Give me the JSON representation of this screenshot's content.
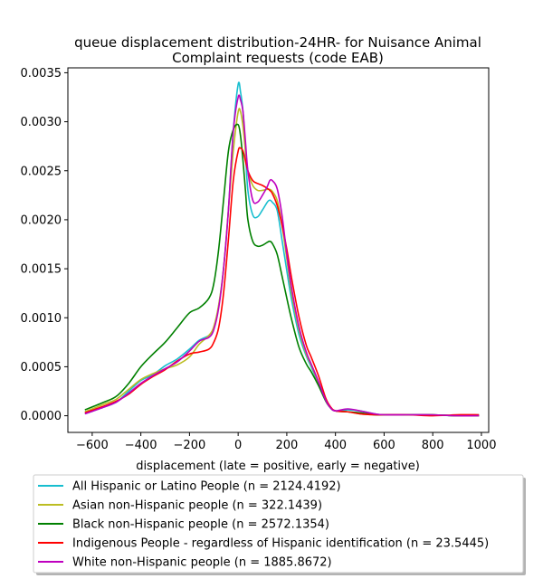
{
  "chart_data": {
    "type": "line",
    "title": "queue displacement distribution-24HR-  for Nuisance Animal Complaint  requests (code EAB)",
    "title_lines": [
      "queue displacement distribution-24HR-  for Nuisance Animal",
      "Complaint  requests (code EAB)"
    ],
    "xlabel": "displacement (late = positive, early = negative)",
    "ylabel": "",
    "xlim": [
      -700,
      1030
    ],
    "ylim": [
      -0.00017,
      0.00355
    ],
    "xticks": [
      -600,
      -400,
      -200,
      0,
      200,
      400,
      600,
      800,
      1000
    ],
    "xtick_labels": [
      "−600",
      "−400",
      "−200",
      "0",
      "200",
      "400",
      "600",
      "800",
      "1000"
    ],
    "yticks": [
      0.0,
      0.0005,
      0.001,
      0.0015,
      0.002,
      0.0025,
      0.003,
      0.0035
    ],
    "ytick_labels": [
      "0.0000",
      "0.0005",
      "0.0010",
      "0.0015",
      "0.0020",
      "0.0025",
      "0.0030",
      "0.0035"
    ],
    "grid": false,
    "legend_position": "below plot",
    "series": [
      {
        "name": "All Hispanic or Latino People (n = 2124.4192)",
        "color": "#17becf",
        "x": [
          -630,
          -550,
          -500,
          -450,
          -400,
          -350,
          -300,
          -250,
          -200,
          -160,
          -120,
          -100,
          -80,
          -60,
          -40,
          -20,
          0,
          10,
          20,
          30,
          40,
          60,
          80,
          100,
          120,
          130,
          140,
          160,
          180,
          200,
          220,
          250,
          280,
          300,
          330,
          360,
          380,
          400,
          450,
          500,
          560,
          600,
          700,
          800,
          900,
          990
        ],
        "y": [
          2e-05,
          9e-05,
          0.00014,
          0.00025,
          0.00036,
          0.00042,
          0.00051,
          0.00058,
          0.00068,
          0.00077,
          0.00082,
          0.0009,
          0.00112,
          0.0015,
          0.0021,
          0.0029,
          0.00338,
          0.0033,
          0.0031,
          0.0027,
          0.0023,
          0.00205,
          0.00203,
          0.0021,
          0.00218,
          0.0022,
          0.00218,
          0.0021,
          0.0018,
          0.00148,
          0.00118,
          0.00083,
          0.00061,
          0.0005,
          0.00033,
          0.00016,
          8e-05,
          5e-05,
          6e-05,
          5e-05,
          2e-05,
          1e-05,
          1e-05,
          1e-05,
          0.0,
          1e-05
        ]
      },
      {
        "name": "Asian non-Hispanic people (n = 322.1439)",
        "color": "#bcbd22",
        "x": [
          -630,
          -550,
          -500,
          -450,
          -400,
          -350,
          -300,
          -250,
          -200,
          -160,
          -120,
          -100,
          -80,
          -60,
          -40,
          -20,
          0,
          10,
          20,
          30,
          40,
          60,
          80,
          100,
          120,
          130,
          140,
          160,
          180,
          200,
          220,
          250,
          280,
          300,
          330,
          360,
          380,
          400,
          450,
          500,
          560,
          600,
          700,
          800,
          900,
          990
        ],
        "y": [
          4e-05,
          0.00012,
          0.00017,
          0.00027,
          0.00037,
          0.00043,
          0.00048,
          0.00052,
          0.0006,
          0.00073,
          0.00082,
          0.00091,
          0.00113,
          0.0015,
          0.0021,
          0.0027,
          0.0031,
          0.0031,
          0.00295,
          0.0027,
          0.0025,
          0.00235,
          0.0023,
          0.0023,
          0.00231,
          0.00231,
          0.00229,
          0.0022,
          0.00195,
          0.0016,
          0.00125,
          0.00088,
          0.00063,
          0.00052,
          0.00034,
          0.00016,
          8e-05,
          5e-05,
          4e-05,
          2e-05,
          1e-05,
          1e-05,
          1e-05,
          1e-05,
          0.0,
          0.0
        ]
      },
      {
        "name": "Black non-Hispanic people (n = 2572.1354)",
        "color": "#008000",
        "x": [
          -630,
          -550,
          -500,
          -450,
          -400,
          -350,
          -300,
          -250,
          -200,
          -160,
          -120,
          -100,
          -80,
          -60,
          -40,
          -20,
          0,
          10,
          20,
          30,
          40,
          60,
          80,
          100,
          120,
          130,
          140,
          160,
          180,
          200,
          220,
          250,
          280,
          300,
          330,
          360,
          380,
          400,
          450,
          500,
          560,
          600,
          700,
          800,
          900,
          990
        ],
        "y": [
          6e-05,
          0.00014,
          0.0002,
          0.00033,
          0.0005,
          0.00063,
          0.00075,
          0.0009,
          0.00105,
          0.0011,
          0.0012,
          0.00135,
          0.0017,
          0.0022,
          0.0027,
          0.00292,
          0.00297,
          0.00285,
          0.0026,
          0.0023,
          0.002,
          0.00178,
          0.00173,
          0.00174,
          0.00177,
          0.00178,
          0.00176,
          0.00165,
          0.00143,
          0.0012,
          0.00098,
          0.0007,
          0.00053,
          0.00045,
          0.00031,
          0.00015,
          8e-05,
          5e-05,
          4e-05,
          3e-05,
          1e-05,
          1e-05,
          1e-05,
          1e-05,
          0.0,
          0.0
        ]
      },
      {
        "name": "Indigenous People - regardless of Hispanic identification (n = 23.5445)",
        "color": "#ff0000",
        "x": [
          -630,
          -550,
          -500,
          -450,
          -400,
          -350,
          -300,
          -250,
          -200,
          -160,
          -120,
          -100,
          -80,
          -60,
          -40,
          -20,
          0,
          10,
          20,
          30,
          40,
          60,
          80,
          100,
          120,
          130,
          140,
          160,
          180,
          200,
          220,
          250,
          280,
          300,
          330,
          360,
          380,
          400,
          450,
          500,
          560,
          600,
          700,
          800,
          900,
          990
        ],
        "y": [
          3e-05,
          0.0001,
          0.00015,
          0.00022,
          0.00032,
          0.0004,
          0.00047,
          0.00056,
          0.00063,
          0.00065,
          0.00068,
          0.00075,
          0.0009,
          0.00125,
          0.0018,
          0.0024,
          0.0027,
          0.00273,
          0.0027,
          0.0026,
          0.0025,
          0.0024,
          0.00237,
          0.00235,
          0.00232,
          0.0023,
          0.00227,
          0.00215,
          0.00195,
          0.0017,
          0.0014,
          0.00101,
          0.00072,
          0.0006,
          0.00041,
          0.00018,
          9e-05,
          5e-05,
          4e-05,
          2e-05,
          1e-05,
          1e-05,
          1e-05,
          0.0,
          1e-05,
          1e-05
        ]
      },
      {
        "name": "White non-Hispanic people (n = 1885.8672)",
        "color": "#bf00bf",
        "x": [
          -630,
          -550,
          -500,
          -450,
          -400,
          -350,
          -300,
          -250,
          -200,
          -160,
          -120,
          -100,
          -80,
          -60,
          -40,
          -20,
          0,
          10,
          20,
          30,
          40,
          60,
          80,
          100,
          120,
          130,
          140,
          160,
          180,
          200,
          220,
          250,
          280,
          300,
          330,
          360,
          380,
          400,
          450,
          500,
          560,
          600,
          700,
          800,
          900,
          990
        ],
        "y": [
          2e-05,
          9e-05,
          0.00014,
          0.00023,
          0.00033,
          0.00041,
          0.00048,
          0.00055,
          0.00066,
          0.00076,
          0.0008,
          0.00088,
          0.0011,
          0.0015,
          0.0021,
          0.0029,
          0.00325,
          0.00322,
          0.0031,
          0.0028,
          0.0025,
          0.0022,
          0.00218,
          0.00225,
          0.00234,
          0.0024,
          0.0024,
          0.00232,
          0.00205,
          0.00165,
          0.0013,
          0.00091,
          0.00065,
          0.00053,
          0.00035,
          0.00016,
          8e-05,
          5e-05,
          7e-05,
          5e-05,
          2e-05,
          1e-05,
          1e-05,
          1e-05,
          0.0,
          0.0
        ]
      }
    ]
  }
}
